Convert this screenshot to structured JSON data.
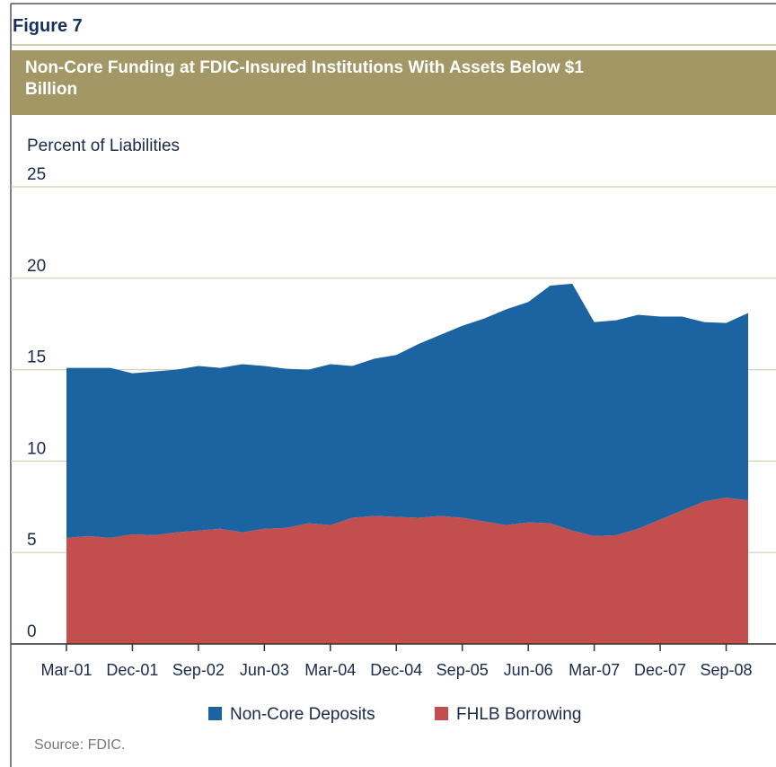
{
  "chart_data": {
    "type": "stacked_area",
    "figure_label": "Figure 7",
    "title": "Non-Core Funding at FDIC-Insured Institutions With Assets Below $1 Billion",
    "y_axis_label": "Percent of Liabilities",
    "source": "Source: FDIC.",
    "categories": [
      "Mar-01",
      null,
      null,
      "Dec-01",
      null,
      null,
      "Sep-02",
      null,
      null,
      "Jun-03",
      null,
      null,
      "Mar-04",
      null,
      null,
      "Dec-04",
      null,
      null,
      "Sep-05",
      null,
      null,
      "Jun-06",
      null,
      null,
      "Mar-07",
      null,
      null,
      "Dec-07",
      null,
      null,
      "Sep-08",
      null
    ],
    "series": [
      {
        "name": "FHLB Borrowing",
        "color": "#c24f4e",
        "values": [
          5.8,
          5.9,
          5.8,
          6.0,
          5.95,
          6.1,
          6.2,
          6.3,
          6.1,
          6.3,
          6.35,
          6.6,
          6.5,
          6.9,
          7.0,
          6.95,
          6.9,
          7.0,
          6.9,
          6.7,
          6.5,
          6.65,
          6.6,
          6.2,
          5.9,
          5.95,
          6.3,
          6.8,
          7.3,
          7.8,
          8.0,
          7.85
        ]
      },
      {
        "name": "Non-Core Deposits",
        "color": "#1b64a1",
        "values": [
          9.3,
          9.2,
          9.3,
          8.8,
          8.95,
          8.9,
          9.0,
          8.8,
          9.2,
          8.9,
          8.7,
          8.4,
          8.8,
          8.3,
          8.6,
          8.85,
          9.5,
          9.9,
          10.5,
          11.1,
          11.8,
          12.05,
          13.0,
          13.5,
          11.7,
          11.75,
          11.7,
          11.1,
          10.6,
          9.8,
          9.55,
          10.25
        ]
      }
    ],
    "ylim": [
      0,
      25
    ],
    "yticks": [
      0,
      5,
      10,
      15,
      20,
      25
    ],
    "grid": true
  }
}
